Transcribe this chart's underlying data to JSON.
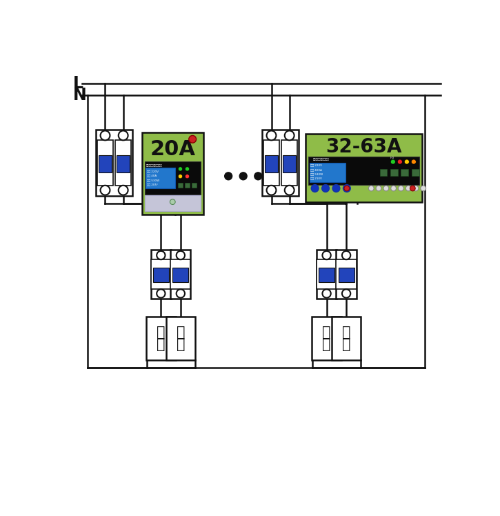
{
  "bg": "#ffffff",
  "lc": "#111111",
  "white": "#ffffff",
  "blue_handle": "#2244bb",
  "green": "#8fbc48",
  "black": "#0a0a0a",
  "lcd": "#2277cc",
  "gray": "#c5c5d8",
  "label_L": "L",
  "label_N": "N",
  "label_20A": "20A",
  "label_3263": "32-63A",
  "fz1": "负",
  "fz2": "载",
  "led1": "#22cc22",
  "led2": "#22cc22",
  "led3": "#ffcc00",
  "led4": "#ff3333",
  "led_g": "#22cc22",
  "led_r": "#ee2222",
  "led_y": "#ffcc00",
  "led_o": "#ff8800",
  "blue_circ": "#1133bb",
  "white_circ": "#dddddd",
  "red_knob": "#cc2222"
}
